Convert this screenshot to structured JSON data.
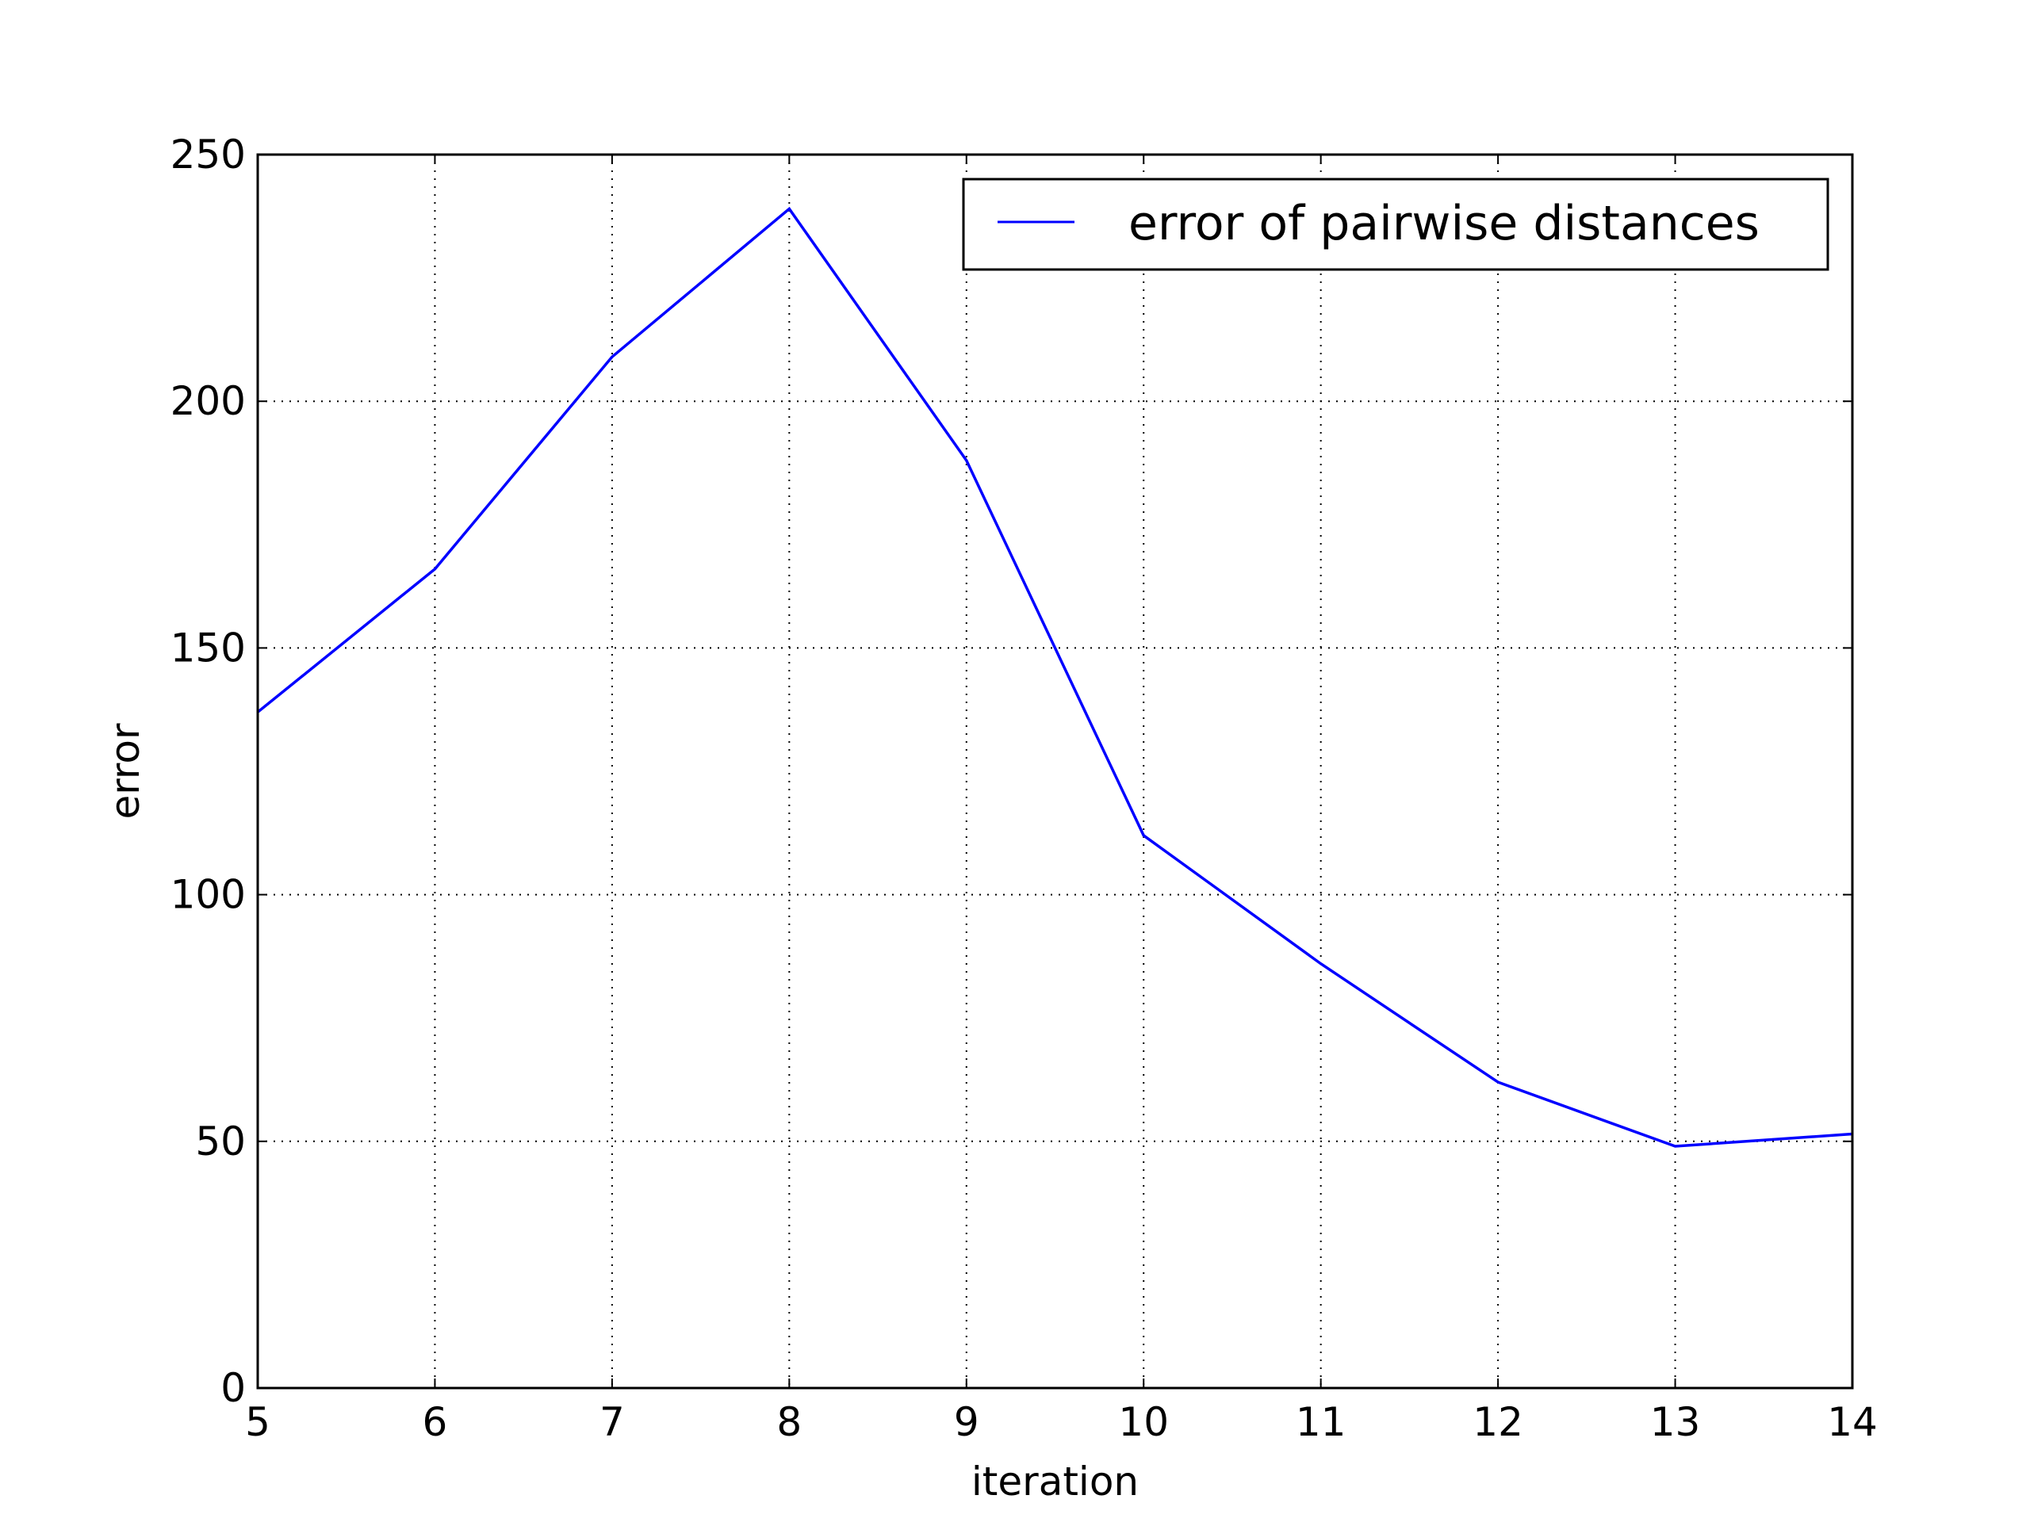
{
  "chart_data": {
    "type": "line",
    "xlabel": "iteration",
    "ylabel": "error",
    "xlim": [
      5,
      14
    ],
    "ylim": [
      0,
      250
    ],
    "xticks": [
      5,
      6,
      7,
      8,
      9,
      10,
      11,
      12,
      13,
      14
    ],
    "yticks": [
      0,
      50,
      100,
      150,
      200,
      250
    ],
    "grid": true,
    "grid_style": "dotted",
    "legend_position": "top-right",
    "series": [
      {
        "name": "error of pairwise distances",
        "color": "#0000ff",
        "x": [
          5,
          6,
          7,
          8,
          9,
          10,
          11,
          12,
          13,
          14
        ],
        "y": [
          137,
          166,
          209,
          239,
          188,
          112,
          86,
          62,
          49,
          51.5
        ]
      }
    ]
  }
}
